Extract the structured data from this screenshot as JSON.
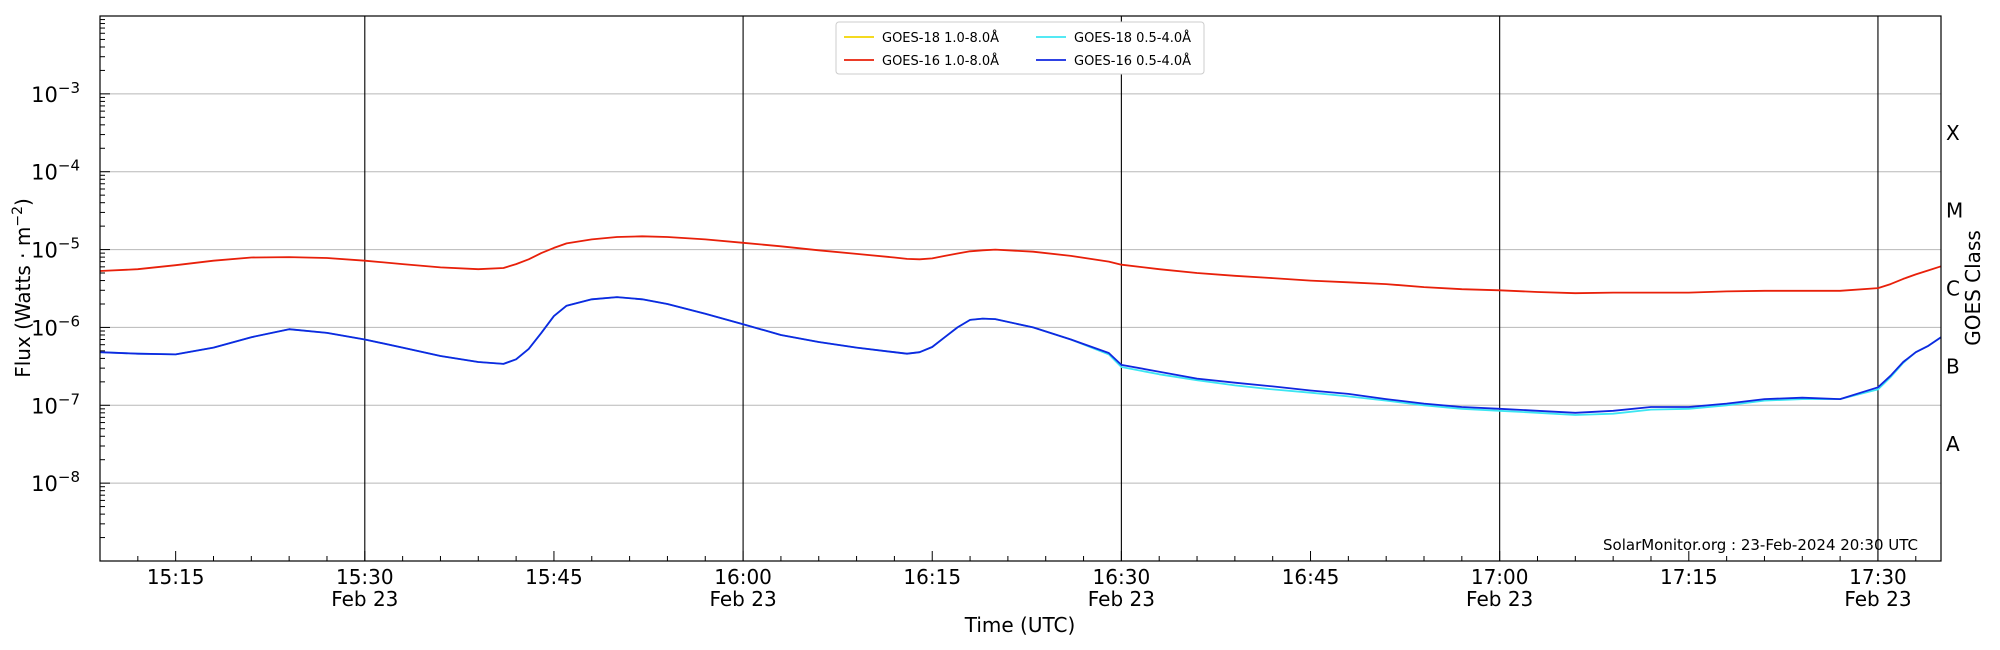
{
  "chart_data": {
    "type": "line",
    "xlabel": "Time (UTC)",
    "ylabel": "Flux (Watts · m",
    "ylabel_sup": "−2",
    "ylabel_close": ")",
    "right_label": "GOES Class",
    "credit": "SolarMonitor.org : 23-Feb-2024 20:30 UTC",
    "yscale": "log",
    "x_minutes_range": [
      909,
      1055
    ],
    "ylim_log10": [
      -9,
      -2
    ],
    "grid": "horizontal",
    "legend_position": "top-center",
    "x_ticks": [
      {
        "minute": 915,
        "label": "15:15",
        "date": ""
      },
      {
        "minute": 930,
        "label": "15:30",
        "date": "Feb 23"
      },
      {
        "minute": 945,
        "label": "15:45",
        "date": ""
      },
      {
        "minute": 960,
        "label": "16:00",
        "date": "Feb 23"
      },
      {
        "minute": 975,
        "label": "16:15",
        "date": ""
      },
      {
        "minute": 990,
        "label": "16:30",
        "date": "Feb 23"
      },
      {
        "minute": 1005,
        "label": "16:45",
        "date": ""
      },
      {
        "minute": 1020,
        "label": "17:00",
        "date": "Feb 23"
      },
      {
        "minute": 1035,
        "label": "17:15",
        "date": ""
      },
      {
        "minute": 1050,
        "label": "17:30",
        "date": "Feb 23"
      }
    ],
    "vlines_minutes": [
      930,
      960,
      990,
      1020,
      1050
    ],
    "y_ticks": [
      {
        "exp": -8,
        "label": "10",
        "sup": "−8"
      },
      {
        "exp": -7,
        "label": "10",
        "sup": "−7"
      },
      {
        "exp": -6,
        "label": "10",
        "sup": "−6"
      },
      {
        "exp": -5,
        "label": "10",
        "sup": "−5"
      },
      {
        "exp": -4,
        "label": "10",
        "sup": "−4"
      },
      {
        "exp": -3,
        "label": "10",
        "sup": "−3"
      }
    ],
    "goes_classes": [
      {
        "label": "A",
        "exp": -7.5
      },
      {
        "label": "B",
        "exp": -6.5
      },
      {
        "label": "C",
        "exp": -5.5
      },
      {
        "label": "M",
        "exp": -4.5
      },
      {
        "label": "X",
        "exp": -3.5
      }
    ],
    "x_time_minutes": [
      909,
      912,
      915,
      918,
      921,
      924,
      927,
      930,
      933,
      936,
      939,
      941,
      942,
      943,
      944,
      945,
      946,
      948,
      950,
      952,
      954,
      957,
      960,
      963,
      966,
      969,
      972,
      973,
      974,
      975,
      976,
      977,
      978,
      979,
      980,
      983,
      986,
      989,
      990,
      993,
      996,
      999,
      1002,
      1005,
      1008,
      1011,
      1014,
      1017,
      1020,
      1023,
      1026,
      1029,
      1032,
      1035,
      1038,
      1041,
      1044,
      1047,
      1050,
      1051,
      1052,
      1053,
      1054,
      1055
    ],
    "series": [
      {
        "name": "GOES-18 1.0-8.0Å",
        "color": "#f2d400",
        "legend_only": true,
        "values": []
      },
      {
        "name": "GOES-16 1.0-8.0Å",
        "color": "#e8200a",
        "values": [
          5.3e-06,
          5.6e-06,
          6.3e-06,
          7.2e-06,
          7.9e-06,
          8e-06,
          7.8e-06,
          7.2e-06,
          6.5e-06,
          5.9e-06,
          5.6e-06,
          5.8e-06,
          6.5e-06,
          7.5e-06,
          9e-06,
          1.05e-05,
          1.2e-05,
          1.35e-05,
          1.45e-05,
          1.48e-05,
          1.45e-05,
          1.35e-05,
          1.22e-05,
          1.1e-05,
          9.8e-06,
          8.8e-06,
          7.9e-06,
          7.6e-06,
          7.5e-06,
          7.7e-06,
          8.3e-06,
          8.9e-06,
          9.5e-06,
          9.8e-06,
          1e-05,
          9.4e-06,
          8.3e-06,
          7e-06,
          6.4e-06,
          5.6e-06,
          5e-06,
          4.6e-06,
          4.3e-06,
          4e-06,
          3.8e-06,
          3.6e-06,
          3.3e-06,
          3.1e-06,
          3e-06,
          2.85e-06,
          2.75e-06,
          2.8e-06,
          2.8e-06,
          2.8e-06,
          2.9e-06,
          2.95e-06,
          2.95e-06,
          2.95e-06,
          3.2e-06,
          3.6e-06,
          4.2e-06,
          4.8e-06,
          5.4e-06,
          6.1e-06
        ]
      },
      {
        "name": "GOES-18 0.5-4.0Å",
        "color": "#3ce6f2",
        "values": [
          4.8e-07,
          4.6e-07,
          4.5e-07,
          5.5e-07,
          7.5e-07,
          9.5e-07,
          8.5e-07,
          7e-07,
          5.5e-07,
          4.3e-07,
          3.6e-07,
          3.4e-07,
          3.9e-07,
          5.3e-07,
          8.5e-07,
          1.4e-06,
          1.9e-06,
          2.3e-06,
          2.45e-06,
          2.3e-06,
          2e-06,
          1.5e-06,
          1.1e-06,
          8e-07,
          6.5e-07,
          5.5e-07,
          4.8e-07,
          4.6e-07,
          4.8e-07,
          5.6e-07,
          7.5e-07,
          1e-06,
          1.25e-06,
          1.3e-06,
          1.28e-06,
          1e-06,
          7e-07,
          4.5e-07,
          3.1e-07,
          2.5e-07,
          2.1e-07,
          1.8e-07,
          1.6e-07,
          1.45e-07,
          1.3e-07,
          1.15e-07,
          1e-07,
          9e-08,
          8.5e-08,
          8e-08,
          7.5e-08,
          7.8e-08,
          8.8e-08,
          9e-08,
          1e-07,
          1.15e-07,
          1.2e-07,
          1.2e-07,
          1.6e-07,
          2.3e-07,
          3.5e-07,
          4.8e-07,
          5.8e-07,
          7.5e-07
        ]
      },
      {
        "name": "GOES-16 0.5-4.0Å",
        "color": "#1027e0",
        "values": [
          4.8e-07,
          4.6e-07,
          4.5e-07,
          5.5e-07,
          7.5e-07,
          9.5e-07,
          8.5e-07,
          7e-07,
          5.5e-07,
          4.3e-07,
          3.6e-07,
          3.4e-07,
          3.9e-07,
          5.3e-07,
          8.5e-07,
          1.4e-06,
          1.9e-06,
          2.3e-06,
          2.45e-06,
          2.3e-06,
          2e-06,
          1.5e-06,
          1.1e-06,
          8e-07,
          6.5e-07,
          5.5e-07,
          4.8e-07,
          4.6e-07,
          4.8e-07,
          5.6e-07,
          7.5e-07,
          1e-06,
          1.25e-06,
          1.3e-06,
          1.28e-06,
          1e-06,
          7e-07,
          4.7e-07,
          3.3e-07,
          2.7e-07,
          2.2e-07,
          1.95e-07,
          1.75e-07,
          1.55e-07,
          1.4e-07,
          1.2e-07,
          1.05e-07,
          9.5e-08,
          9e-08,
          8.5e-08,
          8e-08,
          8.5e-08,
          9.5e-08,
          9.5e-08,
          1.05e-07,
          1.2e-07,
          1.25e-07,
          1.2e-07,
          1.7e-07,
          2.4e-07,
          3.6e-07,
          4.8e-07,
          5.8e-07,
          7.5e-07
        ]
      }
    ]
  }
}
